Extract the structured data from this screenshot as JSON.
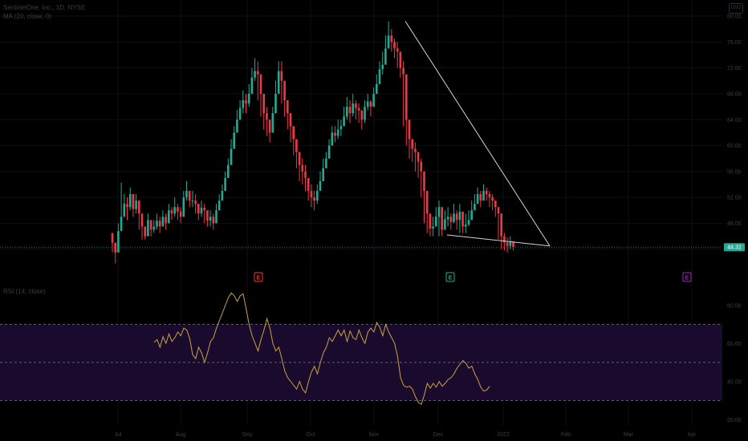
{
  "header": {
    "symbol_line": "SentinelOne, Inc., 1D, NYSE",
    "indicator_line": "MA (20, close, 0)",
    "rsi_line": "RSI (14, close)",
    "top_button": "USD"
  },
  "current_price_label": "44.32",
  "earnings_markers": [
    {
      "label": "E",
      "date": "Sep 1",
      "color": "#f23645"
    },
    {
      "label": "E",
      "date": "Dec 7",
      "color": "#22ab94"
    },
    {
      "label": "E",
      "date": "Mar 15",
      "color": "#9c27b0"
    }
  ],
  "colors": {
    "up": "#22ab94",
    "down": "#f23645",
    "trendline": "#d1d4dc",
    "rsi_line": "#c9a43a",
    "rsi_band": "#1a0b2e",
    "price_line": "#22ab94"
  },
  "chart_data": [
    {
      "type": "candlestick",
      "title": "SentinelOne, Inc., 1D, NYSE",
      "y_ticks": [
        "44.00",
        "48.00",
        "52.00",
        "56.00",
        "60.00",
        "64.00",
        "68.00",
        "72.00",
        "76.00",
        "80.00"
      ],
      "ylim": [
        41,
        80.5
      ],
      "x_ticks": [
        "Jul",
        "Aug",
        "Sep",
        "Oct",
        "Nov",
        "Dec",
        "2022",
        "Feb",
        "Mar",
        "Apr"
      ],
      "current_price": 44.32,
      "trendlines": [
        {
          "from": [
            "Nov 8",
            79.2
          ],
          "to": [
            "Jan 25",
            44.5
          ]
        },
        {
          "from": [
            "Dec 2",
            46.2
          ],
          "to": [
            "Jan 25",
            44.5
          ]
        }
      ],
      "series": [
        {
          "close": [
            45.0,
            43.5,
            46.8,
            49.0,
            51.0,
            50.5,
            52.5,
            50.2,
            51.5,
            49.5,
            47.5,
            46.0,
            48.5,
            47.0,
            47.5,
            48.4,
            47.5,
            49.0,
            48.0,
            50.0,
            49.5,
            50.5,
            49.8,
            49.0,
            52.0,
            53.0,
            51.5,
            51.5,
            51.0,
            49.5,
            50.4,
            50.0,
            48.4,
            49.0,
            48.0,
            50.0,
            51.5,
            53.0,
            55.0,
            57.0,
            59.5,
            62.0,
            64.0,
            65.8,
            67.0,
            66.5,
            68.0,
            70.5,
            71.5,
            71.0,
            68.0,
            65.0,
            64.0,
            62.0,
            65.0,
            68.0,
            71.5,
            70.0,
            67.0,
            65.0,
            63.0,
            61.0,
            59.0,
            57.0,
            56.0,
            55.0,
            53.0,
            52.0,
            51.5,
            53.0,
            54.5,
            56.5,
            58.0,
            60.0,
            62.0,
            61.5,
            62.5,
            63.0,
            64.5,
            66.0,
            65.0,
            66.5,
            65.8,
            65.4,
            64.0,
            66.0,
            66.8,
            66.0,
            68.0,
            69.5,
            71.8,
            72.5,
            75.0,
            77.0,
            76.0,
            75.0,
            74.5,
            72.0,
            71.0,
            64.0,
            61.0,
            59.5,
            59.0,
            57.5,
            56.0,
            53.0,
            49.5,
            47.2,
            47.5,
            49.0,
            50.5,
            47.0,
            48.6,
            49.0,
            48.2,
            49.5,
            48.5,
            49.8,
            47.5,
            47.8,
            48.5,
            50.0,
            51.0,
            52.5,
            51.5,
            53.0,
            52.5,
            52.0,
            51.5,
            50.5,
            49.5,
            46.0,
            45.0,
            44.5,
            45.2,
            44.32
          ],
          "high": [
            46.0,
            45.0,
            48.0,
            54.3,
            52.5,
            52.0,
            53.5,
            51.5,
            52.5,
            51.0,
            48.5,
            47.5,
            49.5,
            48.5,
            48.5,
            49.5,
            49.0,
            50.0,
            49.5,
            51.0,
            50.5,
            52.0,
            51.0,
            50.5,
            53.0,
            54.5,
            53.0,
            53.0,
            52.5,
            51.0,
            51.5,
            51.0,
            50.0,
            50.0,
            49.5,
            51.0,
            52.5,
            54.0,
            56.0,
            58.0,
            61.0,
            63.0,
            65.5,
            67.0,
            68.5,
            68.0,
            69.5,
            72.0,
            73.5,
            73.0,
            70.0,
            67.0,
            66.0,
            64.0,
            66.0,
            70.0,
            73.0,
            73.0,
            70.0,
            67.0,
            65.0,
            63.0,
            61.0,
            59.0,
            58.0,
            57.0,
            55.0,
            54.0,
            53.0,
            54.0,
            56.0,
            58.0,
            59.0,
            61.0,
            63.0,
            63.0,
            64.0,
            64.0,
            66.0,
            67.5,
            67.0,
            68.0,
            67.0,
            66.5,
            65.5,
            67.0,
            68.0,
            67.0,
            69.0,
            71.0,
            73.0,
            74.5,
            77.0,
            79.2,
            78.0,
            76.5,
            76.0,
            74.0,
            73.0,
            66.0,
            63.0,
            61.0,
            60.5,
            59.0,
            58.0,
            55.0,
            51.5,
            49.0,
            49.0,
            50.5,
            51.5,
            49.5,
            50.0,
            50.5,
            49.5,
            51.0,
            50.0,
            51.0,
            49.0,
            49.5,
            50.0,
            51.5,
            52.5,
            53.5,
            53.0,
            54.0,
            53.5,
            53.0,
            52.5,
            51.5,
            50.5,
            48.0,
            46.5,
            45.8,
            46.0,
            45.2
          ],
          "low": [
            43.5,
            41.8,
            44.5,
            47.0,
            49.0,
            48.5,
            50.0,
            49.0,
            49.5,
            47.0,
            45.5,
            45.5,
            46.0,
            46.0,
            46.5,
            47.0,
            46.5,
            47.5,
            47.0,
            48.5,
            48.5,
            49.0,
            48.5,
            48.0,
            50.0,
            51.5,
            50.5,
            50.5,
            49.5,
            48.5,
            49.0,
            48.0,
            47.5,
            47.5,
            47.0,
            48.5,
            50.0,
            51.5,
            53.5,
            55.5,
            58.0,
            60.5,
            62.5,
            64.5,
            65.0,
            65.0,
            66.0,
            68.5,
            70.0,
            67.0,
            64.5,
            62.5,
            61.5,
            60.5,
            63.0,
            66.0,
            69.0,
            66.5,
            64.5,
            62.5,
            60.5,
            58.5,
            56.5,
            54.5,
            54.0,
            53.0,
            51.5,
            50.5,
            50.0,
            51.0,
            53.0,
            55.0,
            57.0,
            59.0,
            60.5,
            60.5,
            61.0,
            61.5,
            63.0,
            64.0,
            63.5,
            64.5,
            64.0,
            63.5,
            62.5,
            63.5,
            65.5,
            64.5,
            66.0,
            68.0,
            70.0,
            71.0,
            73.5,
            75.0,
            74.5,
            73.5,
            72.0,
            70.5,
            63.0,
            60.0,
            58.0,
            57.5,
            56.0,
            55.0,
            52.0,
            48.0,
            46.5,
            46.0,
            46.0,
            47.5,
            46.0,
            46.0,
            47.0,
            47.5,
            47.0,
            48.0,
            47.0,
            46.5,
            46.5,
            46.5,
            47.5,
            49.0,
            50.0,
            51.0,
            50.5,
            51.5,
            51.5,
            50.5,
            50.0,
            49.0,
            45.5,
            44.0,
            43.8,
            43.5,
            44.0,
            43.8
          ]
        }
      ]
    },
    {
      "type": "line",
      "title": "RSI (14, close)",
      "y_ticks": [
        "20.00",
        "40.00",
        "60.00",
        "80.00"
      ],
      "ylim": [
        18,
        90
      ],
      "bands": [
        30,
        50,
        70
      ],
      "series": [
        {
          "name": "RSI",
          "values": [
            60.5,
            62.0,
            58.0,
            63.5,
            60.0,
            65.0,
            61.0,
            63.0,
            66.0,
            64.0,
            68.0,
            67.0,
            62.5,
            54.0,
            52.0,
            58.0,
            55.0,
            50.0,
            55.0,
            61.0,
            63.0,
            68.0,
            72.0,
            76.0,
            80.0,
            84.0,
            86.5,
            85.0,
            82.0,
            85.0,
            86.0,
            78.0,
            70.0,
            64.0,
            60.0,
            56.0,
            62.0,
            67.0,
            73.0,
            68.0,
            60.0,
            56.0,
            58.0,
            52.0,
            45.5,
            42.0,
            40.0,
            38.0,
            36.0,
            40.0,
            36.0,
            34.0,
            40.0,
            45.0,
            48.0,
            44.0,
            50.0,
            55.0,
            58.0,
            63.0,
            61.0,
            64.0,
            67.0,
            64.0,
            67.0,
            61.0,
            66.5,
            63.0,
            62.0,
            67.0,
            63.0,
            60.0,
            66.0,
            68.0,
            66.0,
            71.0,
            68.5,
            64.0,
            70.0,
            66.0,
            63.0,
            60.0,
            53.0,
            42.0,
            38.0,
            37.0,
            37.5,
            36.0,
            32.0,
            29.0,
            28.0,
            33.0,
            39.0,
            36.5,
            39.0,
            37.0,
            40.0,
            37.5,
            39.0,
            41.0,
            42.0,
            44.0,
            47.0,
            49.0,
            51.0,
            49.5,
            47.0,
            48.0,
            44.0,
            41.0,
            37.0,
            35.0,
            35.5,
            37.5
          ]
        }
      ]
    }
  ]
}
